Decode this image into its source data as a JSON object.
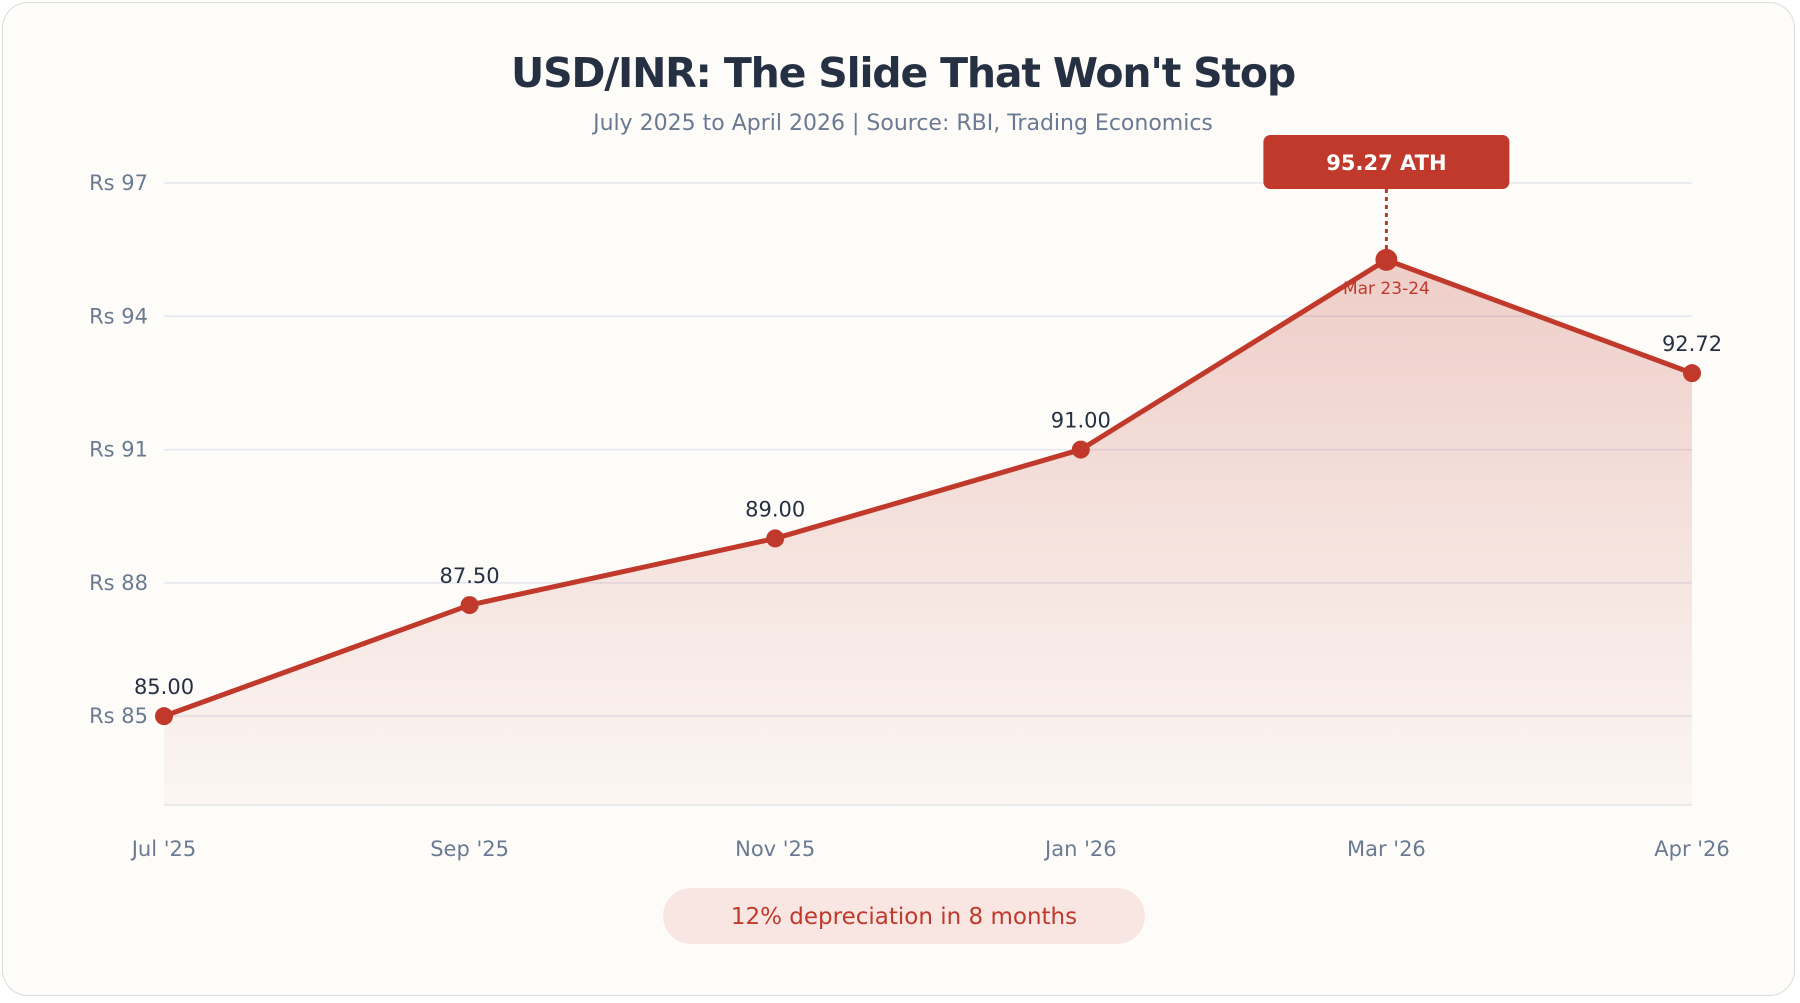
{
  "chart_data": {
    "type": "area",
    "title": "USD/INR: The Slide That Won't Stop",
    "subtitle": "July 2025 to April 2026 | Source: RBI, Trading Economics",
    "categories": [
      "Jul '25",
      "Sep '25",
      "Nov '25",
      "Jan '26",
      "Mar '26",
      "Apr '26"
    ],
    "series": [
      {
        "values": [
          85.0,
          87.5,
          89.0,
          91.0,
          95.27,
          92.72
        ],
        "labels": [
          "85.00",
          "87.50",
          "89.00",
          "91.00",
          "",
          "92.72"
        ],
        "color": "#c0392b"
      }
    ],
    "yticks": [
      85,
      88,
      91,
      94,
      97
    ],
    "ytick_labels": [
      "Rs 85",
      "Rs 88",
      "Rs 91",
      "Rs 94",
      "Rs 97"
    ],
    "ylim": [
      83,
      97
    ],
    "grid": true,
    "annotations": [
      {
        "category": "Mar '26",
        "value": 95.27,
        "label": "95.27 ATH",
        "sublabel": "Mar 23-24"
      }
    ],
    "footnote": "12% depreciation in 8 months"
  },
  "colors": {
    "line": "#c0392b",
    "grid": "#e3e6ee",
    "badge_bg": "#f9e6e2"
  }
}
